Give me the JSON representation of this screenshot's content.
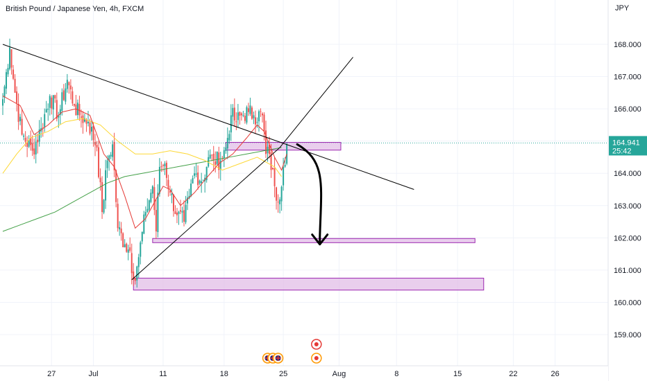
{
  "title": "British Pound / Japanese Yen, 4h, FXCM",
  "chart_data": {
    "type": "candlestick",
    "title": "British Pound / Japanese Yen, 4h, FXCM",
    "currency": "JPY",
    "ylim": [
      158.3,
      169.4
    ],
    "y_ticks": [
      159,
      160,
      161,
      162,
      163,
      164,
      165,
      166,
      167,
      168
    ],
    "x_ticks": [
      {
        "label": "27",
        "bar": 28
      },
      {
        "label": "Jul",
        "bar": 52
      },
      {
        "label": "11",
        "bar": 92
      },
      {
        "label": "18",
        "bar": 127
      },
      {
        "label": "25",
        "bar": 161
      },
      {
        "label": "Aug",
        "bar": 193
      },
      {
        "label": "8",
        "bar": 226
      },
      {
        "label": "15",
        "bar": 261
      },
      {
        "label": "22",
        "bar": 293
      },
      {
        "label": "26",
        "bar": 317
      }
    ],
    "last_price": "164.941",
    "countdown": "25:42",
    "price_line": 164.941,
    "colors": {
      "up": "#26a69a",
      "down": "#ef5350",
      "ma_fast": "#e53935",
      "ma_mid": "#fdd835",
      "ma_slow": "#43a047",
      "zone_fill": "#e1bee7",
      "zone_stroke": "#9c27b0",
      "price_label": "#26a69a",
      "trend": "#000000"
    },
    "keypoints": [
      [
        0,
        166.3
      ],
      [
        4,
        167.9
      ],
      [
        7,
        166.5
      ],
      [
        11,
        165.2
      ],
      [
        17,
        164.7
      ],
      [
        22,
        165.4
      ],
      [
        27,
        166.4
      ],
      [
        32,
        165.8
      ],
      [
        37,
        166.9
      ],
      [
        41,
        166.1
      ],
      [
        44,
        165.8
      ],
      [
        49,
        165.6
      ],
      [
        54,
        164.8
      ],
      [
        57,
        162.8
      ],
      [
        60,
        164.4
      ],
      [
        63,
        164.9
      ],
      [
        66,
        162.3
      ],
      [
        70,
        161.8
      ],
      [
        73,
        161.6
      ],
      [
        75,
        160.7
      ],
      [
        78,
        161.4
      ],
      [
        82,
        162.8
      ],
      [
        86,
        163.6
      ],
      [
        88,
        162.2
      ],
      [
        90,
        164.2
      ],
      [
        93,
        164.3
      ],
      [
        96,
        163.4
      ],
      [
        100,
        162.7
      ],
      [
        104,
        162.5
      ],
      [
        107,
        163.3
      ],
      [
        110,
        164.0
      ],
      [
        115,
        163.8
      ],
      [
        118,
        164.5
      ],
      [
        121,
        164.4
      ],
      [
        125,
        164.4
      ],
      [
        128,
        164.8
      ],
      [
        131,
        165.8
      ],
      [
        134,
        165.6
      ],
      [
        137,
        165.8
      ],
      [
        141,
        165.9
      ],
      [
        144,
        165.8
      ],
      [
        149,
        165.8
      ],
      [
        151,
        164.6
      ],
      [
        153,
        164.6
      ],
      [
        156,
        163.6
      ],
      [
        158,
        163.1
      ],
      [
        161,
        164.2
      ],
      [
        163,
        164.9
      ]
    ],
    "ma_fast": [
      [
        0,
        166.4
      ],
      [
        10,
        166.1
      ],
      [
        18,
        165.2
      ],
      [
        26,
        165.5
      ],
      [
        34,
        165.9
      ],
      [
        42,
        166.0
      ],
      [
        50,
        165.8
      ],
      [
        58,
        164.6
      ],
      [
        64,
        164.2
      ],
      [
        70,
        163.3
      ],
      [
        76,
        162.3
      ],
      [
        82,
        162.6
      ],
      [
        88,
        163.2
      ],
      [
        92,
        163.6
      ],
      [
        96,
        163.5
      ],
      [
        102,
        163.0
      ],
      [
        110,
        163.4
      ],
      [
        116,
        163.8
      ],
      [
        124,
        164.3
      ],
      [
        132,
        164.6
      ],
      [
        140,
        165.1
      ],
      [
        146,
        165.5
      ],
      [
        150,
        165.3
      ],
      [
        156,
        164.5
      ],
      [
        160,
        164.1
      ],
      [
        163,
        164.6
      ]
    ],
    "ma_mid": [
      [
        0,
        164.0
      ],
      [
        8,
        164.6
      ],
      [
        16,
        165.1
      ],
      [
        26,
        165.3
      ],
      [
        36,
        165.6
      ],
      [
        46,
        165.7
      ],
      [
        56,
        165.5
      ],
      [
        66,
        165.0
      ],
      [
        76,
        164.6
      ],
      [
        86,
        164.6
      ],
      [
        96,
        164.7
      ],
      [
        106,
        164.6
      ],
      [
        116,
        164.4
      ],
      [
        126,
        164.1
      ],
      [
        136,
        164.3
      ],
      [
        146,
        164.5
      ],
      [
        156,
        164.2
      ],
      [
        160,
        163.9
      ]
    ],
    "ma_slow": [
      [
        0,
        162.2
      ],
      [
        10,
        162.4
      ],
      [
        20,
        162.6
      ],
      [
        30,
        162.8
      ],
      [
        40,
        163.1
      ],
      [
        50,
        163.4
      ],
      [
        60,
        163.7
      ],
      [
        70,
        163.9
      ],
      [
        80,
        164.0
      ],
      [
        90,
        164.1
      ],
      [
        100,
        164.2
      ],
      [
        110,
        164.3
      ],
      [
        120,
        164.4
      ],
      [
        130,
        164.5
      ],
      [
        140,
        164.6
      ],
      [
        150,
        164.7
      ],
      [
        160,
        164.8
      ]
    ],
    "trendlines": [
      {
        "from": [
          0,
          168.0
        ],
        "to": [
          236,
          163.5
        ]
      },
      {
        "from": [
          74,
          160.7
        ],
        "to": [
          159,
          164.8
        ]
      },
      {
        "from": [
          159,
          164.8
        ],
        "to": [
          201,
          167.6
        ]
      }
    ],
    "zones": [
      {
        "bar_from": 128,
        "bar_to": 194,
        "price_from": 164.72,
        "price_to": 164.96
      },
      {
        "bar_from": 86,
        "bar_to": 271,
        "price_from": 161.85,
        "price_to": 161.98
      },
      {
        "bar_from": 75,
        "bar_to": 276,
        "price_from": 160.38,
        "price_to": 160.75
      }
    ],
    "arrow": {
      "start": [
        157,
        164.9
      ],
      "end": [
        170,
        161.8
      ]
    },
    "event_markers": [
      {
        "bar": 152,
        "type": "uk-flag"
      },
      {
        "bar": 155,
        "type": "uk-flag"
      },
      {
        "bar": 158,
        "type": "uk-flag"
      },
      {
        "bar": 180,
        "type": "event-red"
      },
      {
        "bar": 180,
        "type": "event-red-lower"
      }
    ]
  }
}
